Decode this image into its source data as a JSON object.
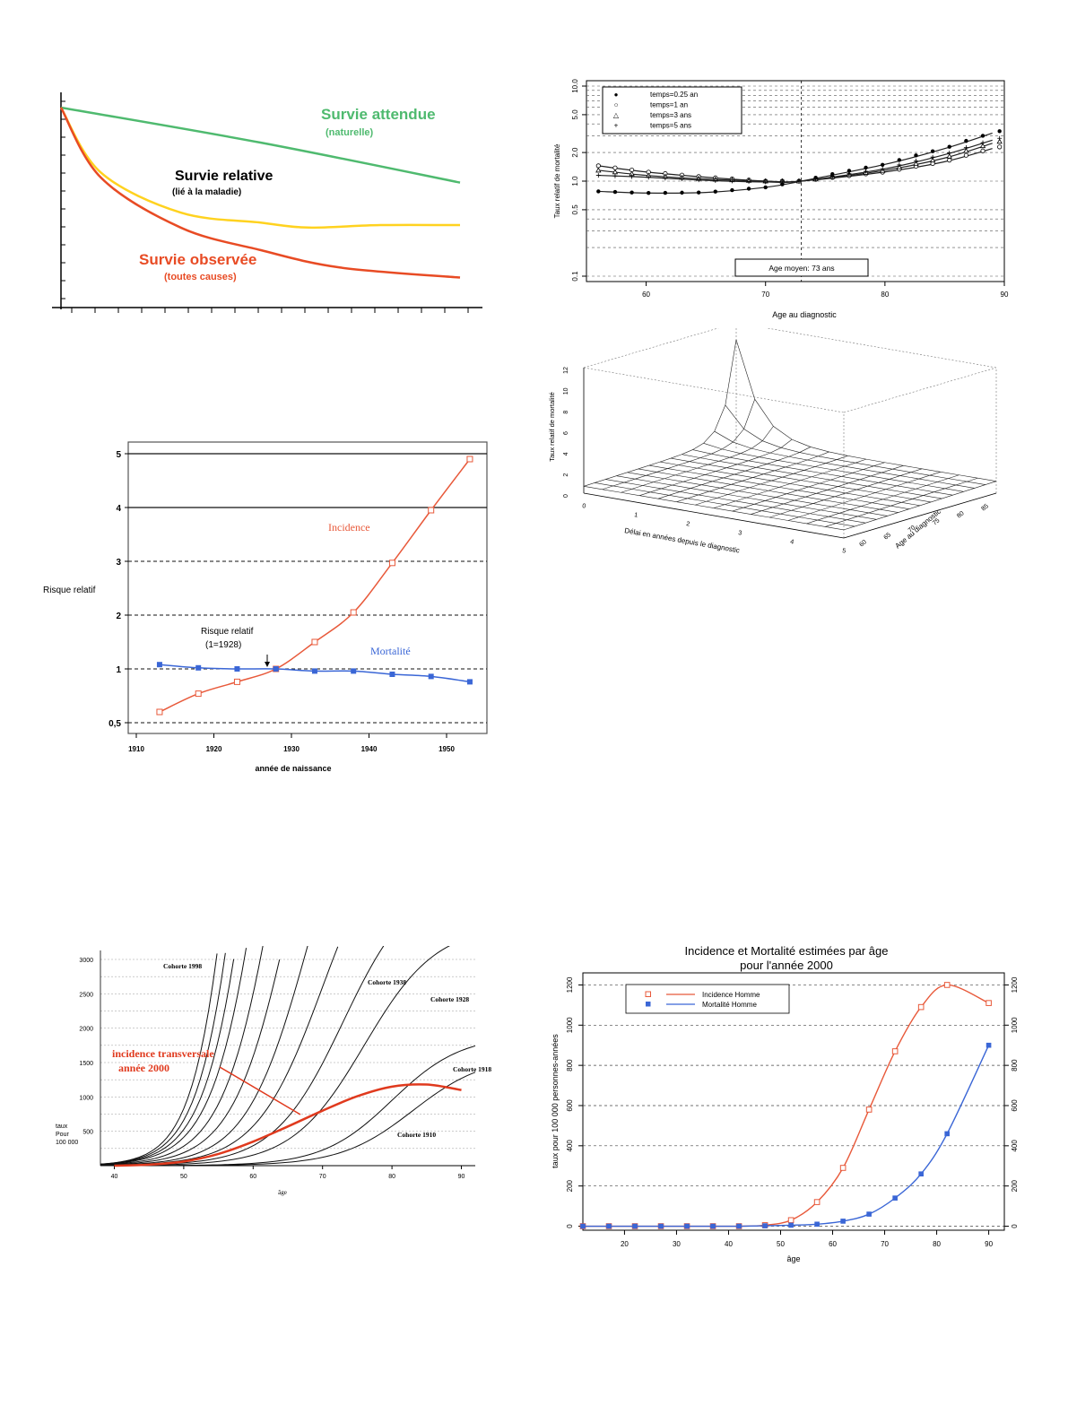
{
  "chart_data": [
    {
      "id": "survival",
      "type": "line",
      "series": [
        {
          "name": "Survie attendue",
          "sub": "(naturelle)",
          "color": "#4fba6f",
          "x": [
            0,
            0.5,
            1
          ],
          "y": [
            1.0,
            0.86,
            0.7
          ]
        },
        {
          "name": "Survie relative",
          "sub": "(lié à la maladie)",
          "color": "#ffd21f",
          "x": [
            0,
            0.1,
            0.3,
            0.5,
            0.62,
            0.8,
            1
          ],
          "y": [
            1.0,
            0.74,
            0.58,
            0.54,
            0.52,
            0.53,
            0.53
          ]
        },
        {
          "name": "Survie observée",
          "sub": "(toutes causes)",
          "color": "#e84b24",
          "x": [
            0,
            0.1,
            0.3,
            0.5,
            0.7,
            1
          ],
          "y": [
            1.0,
            0.72,
            0.52,
            0.43,
            0.36,
            0.32
          ]
        }
      ]
    },
    {
      "id": "relative-mortality",
      "type": "line",
      "xlabel": "Age au diagnostic",
      "ylabel": "Taux relatif de mortalité",
      "xlim": [
        55,
        90
      ],
      "ylim": [
        0.1,
        10
      ],
      "yscale": "log",
      "x_ticks": [
        "60",
        "70",
        "80",
        "90"
      ],
      "y_ticks": [
        "0.1",
        "0.5",
        "1.0",
        "2.0",
        "5.0",
        "10.0"
      ],
      "legend": [
        "temps=0.25 an",
        "temps=1 an",
        "temps=3 ans",
        "temps=5 ans"
      ],
      "legend_symbols": [
        "●",
        "○",
        "△",
        "+"
      ],
      "annotation": "Age moyen:  73 ans",
      "series": [
        {
          "name": "temps=0.25 an",
          "x": [
            56,
            60,
            65,
            70,
            73,
            80,
            85,
            89
          ],
          "y": [
            0.78,
            0.75,
            0.76,
            0.86,
            1.0,
            1.5,
            2.2,
            3.2
          ]
        },
        {
          "name": "temps=1 an",
          "x": [
            56,
            60,
            65,
            70,
            73,
            80,
            85,
            89
          ],
          "y": [
            1.45,
            1.25,
            1.1,
            1.0,
            1.0,
            1.25,
            1.6,
            2.2
          ]
        },
        {
          "name": "temps=3 ans",
          "x": [
            56,
            60,
            65,
            70,
            73,
            80,
            85,
            89
          ],
          "y": [
            1.3,
            1.15,
            1.05,
            1.0,
            1.0,
            1.3,
            1.75,
            2.5
          ]
        },
        {
          "name": "temps=5 ans",
          "x": [
            56,
            60,
            65,
            70,
            73,
            80,
            85,
            89
          ],
          "y": [
            1.15,
            1.1,
            1.02,
            0.98,
            1.0,
            1.35,
            1.9,
            2.7
          ]
        }
      ]
    },
    {
      "id": "surface-3d",
      "type": "surface",
      "zlabel": "Taux relatif de mortalité",
      "xlabel": "Délai en années depuis le diagnostic",
      "ylabel": "Age au diagnostic",
      "x_ticks": [
        "0",
        "1",
        "2",
        "3",
        "4",
        "5"
      ],
      "y_ticks": [
        "60",
        "65",
        "70",
        "75",
        "80",
        "85"
      ],
      "z_ticks": [
        "0",
        "2",
        "4",
        "6",
        "8",
        "10",
        "12"
      ],
      "grid_size": 14
    },
    {
      "id": "relative-risk",
      "type": "line",
      "ylabel": "Risque relatif",
      "xlabel": "année de naissance",
      "x_ticks": [
        "1910",
        "1920",
        "1930",
        "1940",
        "1950"
      ],
      "y_ticks": [
        "0,5",
        "1",
        "2",
        "3",
        "4",
        "5"
      ],
      "annotation": [
        "Risque relatif",
        "(1=1928)"
      ],
      "series": [
        {
          "name": "Incidence",
          "color": "#e8593a",
          "x": [
            1913,
            1918,
            1923,
            1928,
            1933,
            1938,
            1943,
            1948,
            1953
          ],
          "y": [
            0.6,
            0.77,
            0.88,
            1.0,
            1.5,
            2.05,
            2.97,
            3.95,
            4.9
          ]
        },
        {
          "name": "Mortalité",
          "color": "#3a66d6",
          "x": [
            1913,
            1918,
            1923,
            1928,
            1933,
            1938,
            1943,
            1948,
            1953
          ],
          "y": [
            1.08,
            1.02,
            1.0,
            1.0,
            0.98,
            0.98,
            0.95,
            0.93,
            0.88
          ]
        }
      ]
    },
    {
      "id": "cohort-incidence",
      "type": "line",
      "xlabel": "âge",
      "ylabel": [
        "taux",
        "Pour",
        "100 000"
      ],
      "xlim": [
        38,
        92
      ],
      "ylim": [
        0,
        3000
      ],
      "x_ticks": [
        "40",
        "50",
        "60",
        "70",
        "80",
        "90"
      ],
      "y_ticks": [
        "500",
        "1000",
        "1500",
        "2000",
        "2500",
        "3000"
      ],
      "cohort_labels": [
        "Cohorte 1998",
        "Cohorte 1938",
        "Cohorte 1928",
        "Cohorte 1918",
        "Cohorte 1910"
      ],
      "highlight": [
        "incidence transversale",
        "année 2000"
      ],
      "highlight_series": {
        "x": [
          40,
          45,
          50,
          55,
          60,
          65,
          70,
          75,
          80,
          85,
          90
        ],
        "y": [
          0,
          15,
          60,
          170,
          350,
          570,
          800,
          1010,
          1150,
          1180,
          1100
        ]
      }
    },
    {
      "id": "incidence-mortality-2000",
      "type": "line",
      "title": [
        "Incidence et Mortalité estimées par âge",
        "pour l'année 2000"
      ],
      "xlabel": "âge",
      "ylabel": "taux pour 100 000 personnes-années",
      "xlim": [
        12,
        93
      ],
      "ylim": [
        -20,
        1260
      ],
      "x_ticks": [
        "20",
        "30",
        "40",
        "50",
        "60",
        "70",
        "80",
        "90"
      ],
      "y_ticks": [
        "0",
        "200",
        "400",
        "600",
        "800",
        "1000",
        "1200"
      ],
      "series": [
        {
          "name": "Incidence Homme",
          "color": "#e8593a",
          "marker": "□",
          "x": [
            12,
            17,
            22,
            27,
            32,
            37,
            42,
            47,
            52,
            57,
            62,
            67,
            72,
            77,
            82,
            90
          ],
          "y": [
            0,
            0,
            0,
            0,
            0,
            0,
            0,
            5,
            30,
            120,
            290,
            580,
            870,
            1090,
            1200,
            1110
          ]
        },
        {
          "name": "Mortalité Homme",
          "color": "#3a66d6",
          "marker": "■",
          "x": [
            12,
            17,
            22,
            27,
            32,
            37,
            42,
            47,
            52,
            57,
            62,
            67,
            72,
            77,
            82,
            90
          ],
          "y": [
            0,
            0,
            0,
            0,
            0,
            0,
            0,
            2,
            5,
            10,
            25,
            60,
            140,
            260,
            460,
            900
          ]
        }
      ]
    }
  ]
}
